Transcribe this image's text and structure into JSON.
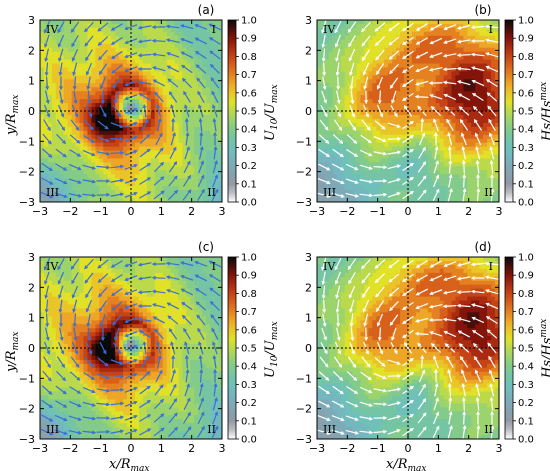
{
  "chart_data": [
    {
      "type": "heatmap",
      "panel_label": "(a)",
      "field": "wind",
      "xlabel": "",
      "ylabel": "y/R_max",
      "cbar_label": "U_10/U_max",
      "xlim": [
        -3,
        3
      ],
      "ylim": [
        -3,
        3
      ],
      "xticks": [
        "−3",
        "−2",
        "−1",
        "0",
        "1",
        "2",
        "3"
      ],
      "yticks": [
        "−3",
        "−2",
        "−1",
        "0",
        "1",
        "2",
        "3"
      ],
      "cbar_ticks": [
        "0.0",
        "0.1",
        "0.2",
        "0.3",
        "0.4",
        "0.5",
        "0.6",
        "0.7",
        "0.8",
        "0.9",
        "1.0"
      ],
      "quadrants": {
        "q1": "I",
        "q2": "II",
        "q3": "III",
        "q4": "IV"
      },
      "vmax_location": [
        -0.8,
        -0.3
      ],
      "eye": [
        0,
        0.1
      ],
      "vector_color": "#3a6fd8"
    },
    {
      "type": "heatmap",
      "panel_label": "(b)",
      "field": "wave",
      "xlabel": "",
      "ylabel": "",
      "cbar_label": "Hs/Hs^max",
      "xlim": [
        -3,
        3
      ],
      "ylim": [
        -3,
        3
      ],
      "xticks": [
        "−3",
        "−2",
        "−1",
        "0",
        "1",
        "2",
        "3"
      ],
      "yticks": [
        "−3",
        "−2",
        "−1",
        "0",
        "1",
        "2",
        "3"
      ],
      "cbar_ticks": [
        "0.0",
        "0.1",
        "0.2",
        "0.3",
        "0.4",
        "0.5",
        "0.6",
        "0.7",
        "0.8",
        "0.9",
        "1.0"
      ],
      "quadrants": {
        "q1": "I",
        "q2": "II",
        "q3": "III",
        "q4": "IV"
      },
      "hs_max_location": [
        2.2,
        0.5
      ],
      "vector_color": "#ffffff"
    },
    {
      "type": "heatmap",
      "panel_label": "(c)",
      "field": "wind",
      "xlabel": "x/R_max",
      "ylabel": "y/R_max",
      "cbar_label": "U_10/U_max",
      "xlim": [
        -3,
        3
      ],
      "ylim": [
        -3,
        3
      ],
      "xticks": [
        "−3",
        "−2",
        "−1",
        "0",
        "1",
        "2",
        "3"
      ],
      "yticks": [
        "−3",
        "−2",
        "−1",
        "0",
        "1",
        "2",
        "3"
      ],
      "cbar_ticks": [
        "0.0",
        "0.1",
        "0.2",
        "0.3",
        "0.4",
        "0.5",
        "0.6",
        "0.7",
        "0.8",
        "0.9",
        "1.0"
      ],
      "quadrants": {
        "q1": "I",
        "q2": "II",
        "q3": "III",
        "q4": "IV"
      },
      "vmax_location": [
        -0.8,
        0.0
      ],
      "eye": [
        0,
        0.1
      ],
      "vector_color": "#3a6fd8"
    },
    {
      "type": "heatmap",
      "panel_label": "(d)",
      "field": "wave",
      "xlabel": "x/R_max",
      "ylabel": "",
      "cbar_label": "Hs/Hs^max",
      "xlim": [
        -3,
        3
      ],
      "ylim": [
        -3,
        3
      ],
      "xticks": [
        "−3",
        "−2",
        "−1",
        "0",
        "1",
        "2",
        "3"
      ],
      "yticks": [
        "−3",
        "−2",
        "−1",
        "0",
        "1",
        "2",
        "3"
      ],
      "cbar_ticks": [
        "0.0",
        "0.1",
        "0.2",
        "0.3",
        "0.4",
        "0.5",
        "0.6",
        "0.7",
        "0.8",
        "0.9",
        "1.0"
      ],
      "quadrants": {
        "q1": "I",
        "q2": "II",
        "q3": "III",
        "q4": "IV"
      },
      "hs_max_location": [
        2.3,
        0.6
      ],
      "vector_color": "#ffffff"
    }
  ]
}
